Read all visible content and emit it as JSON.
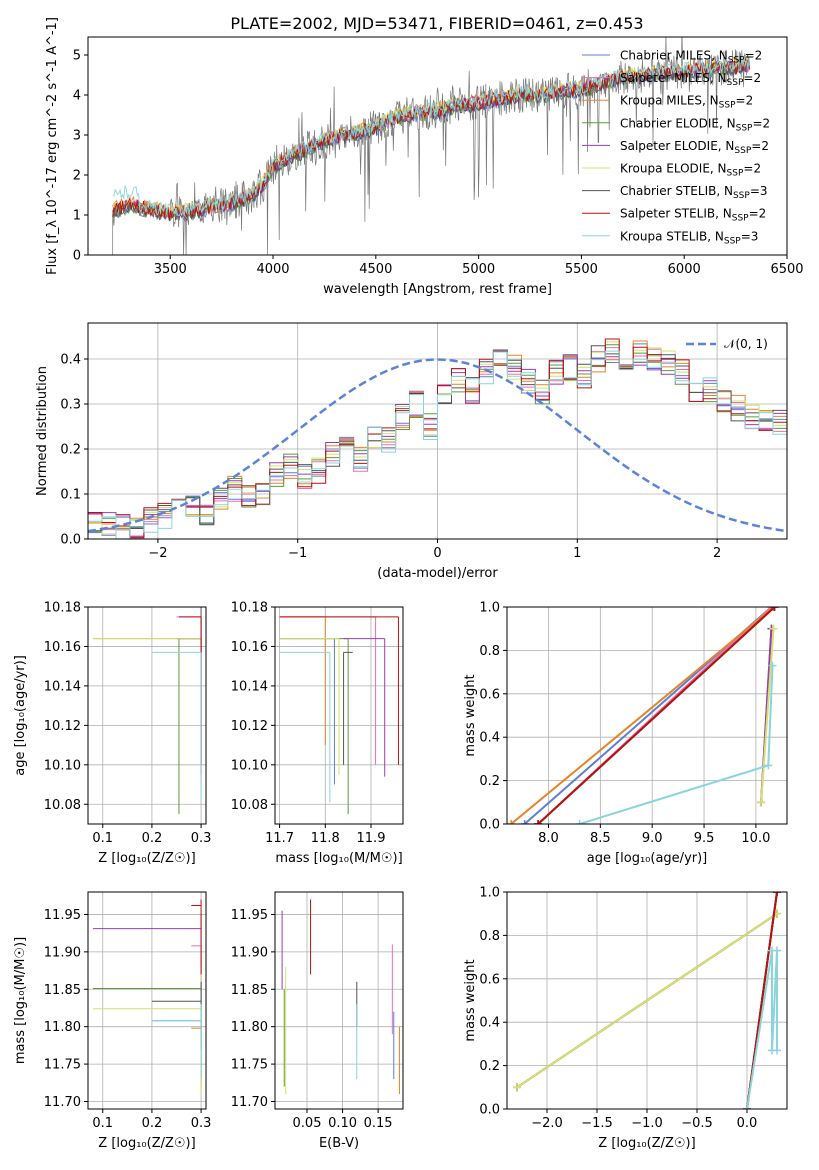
{
  "colors": {
    "Chabrier MILES": "#5b7fd6",
    "Salpeter MILES": "#ea6fb0",
    "Kroupa MILES": "#e6832a",
    "Chabrier ELODIE": "#5a9b3a",
    "Salpeter ELODIE": "#9a3bb5",
    "Kroupa ELODIE": "#d7e06a",
    "Chabrier STELIB": "#555555",
    "Salpeter STELIB": "#b8120e",
    "Kroupa STELIB": "#88d5dd",
    "observed": "#777777",
    "gaussian": "#5b84d8",
    "grid": "#b0b0b0"
  },
  "chart_data": [
    {
      "id": "spectrum",
      "type": "line",
      "title": "PLATE=2002, MJD=53471, FIBERID=0461, z=0.453",
      "xlabel": "wavelength [Angstrom, rest frame]",
      "ylabel": "Flux [f_λ 10^-17 erg cm^-2 s^-1 A^-1]",
      "xlim": [
        3100,
        6500
      ],
      "ylim": [
        0,
        5.45
      ],
      "xticks": [
        "3500",
        "4000",
        "4500",
        "5000",
        "5500",
        "6000",
        "6500"
      ],
      "yticks": [
        "0",
        "1",
        "2",
        "3",
        "4",
        "5"
      ],
      "legend_position": "top-right",
      "legend": [
        {
          "model": "Chabrier MILES",
          "nssp": "2"
        },
        {
          "model": "Salpeter MILES",
          "nssp": "2"
        },
        {
          "model": "Kroupa MILES",
          "nssp": "2"
        },
        {
          "model": "Chabrier ELODIE",
          "nssp": "2"
        },
        {
          "model": "Salpeter ELODIE",
          "nssp": "2"
        },
        {
          "model": "Kroupa ELODIE",
          "nssp": "2"
        },
        {
          "model": "Chabrier STELIB",
          "nssp": "3"
        },
        {
          "model": "Salpeter STELIB",
          "nssp": "2"
        },
        {
          "model": "Kroupa STELIB",
          "nssp": "3"
        }
      ],
      "model_continuum": {
        "wavelength": [
          3220,
          3300,
          3400,
          3500,
          3600,
          3700,
          3800,
          3900,
          3950,
          4000,
          4100,
          4200,
          4300,
          4400,
          4500,
          4600,
          4700,
          4800,
          4900,
          5000,
          5100,
          5200,
          5300,
          5400,
          5500,
          5600,
          5700,
          5800,
          5900,
          6000,
          6100,
          6200,
          6320
        ],
        "flux": [
          1.1,
          1.25,
          1.15,
          1.05,
          1.1,
          1.2,
          1.3,
          1.5,
          1.75,
          2.2,
          2.5,
          2.75,
          2.95,
          3.05,
          3.2,
          3.45,
          3.55,
          3.6,
          3.75,
          3.8,
          3.9,
          4.0,
          4.0,
          4.1,
          4.15,
          4.3,
          4.45,
          4.5,
          4.55,
          4.6,
          4.65,
          4.7,
          4.75
        ]
      }
    },
    {
      "id": "residuals",
      "type": "line",
      "xlabel": "(data-model)/error",
      "ylabel": "Normed distribution",
      "xlim": [
        -2.5,
        2.5
      ],
      "ylim": [
        0,
        0.48
      ],
      "xticks": [
        "−2",
        "−1",
        "0",
        "1",
        "2"
      ],
      "yticks": [
        "0.0",
        "0.1",
        "0.2",
        "0.3",
        "0.4"
      ],
      "legend_position": "top-right",
      "gaussian_label": "𝒩(0, 1)",
      "bin_edges_start": -2.5,
      "bin_width": 0.1,
      "base_histogram": [
        0.03,
        0.03,
        0.025,
        0.03,
        0.04,
        0.05,
        0.07,
        0.07,
        0.06,
        0.09,
        0.11,
        0.1,
        0.1,
        0.14,
        0.16,
        0.14,
        0.15,
        0.19,
        0.2,
        0.18,
        0.23,
        0.22,
        0.27,
        0.3,
        0.25,
        0.32,
        0.35,
        0.33,
        0.37,
        0.4,
        0.38,
        0.35,
        0.33,
        0.37,
        0.38,
        0.36,
        0.4,
        0.42,
        0.38,
        0.41,
        0.4,
        0.39,
        0.37,
        0.33,
        0.33,
        0.3,
        0.29,
        0.27,
        0.27,
        0.26,
        0.24,
        0.23,
        0.2,
        0.22,
        0.21,
        0.18,
        0.17,
        0.14,
        0.13,
        0.12,
        0.11,
        0.09,
        0.1,
        0.08,
        0.07,
        0.075,
        0.07,
        0.06,
        0.05,
        0.06,
        0.05,
        0.05,
        0.04,
        0.045,
        0.04,
        0.04,
        0.045,
        0.03,
        0.04,
        0.03
      ]
    },
    {
      "id": "age-vs-Z",
      "type": "scatter",
      "xlabel": "Z [log₁₀(Z/Z☉)]",
      "ylabel": "age  [log₁₀(age/yr)]",
      "xlim": [
        0.07,
        0.31
      ],
      "ylim": [
        10.07,
        10.18
      ],
      "xticks": [
        "0.1",
        "0.2",
        "0.3"
      ],
      "yticks": [
        "10.08",
        "10.10",
        "10.12",
        "10.14",
        "10.16",
        "10.18"
      ],
      "points": [
        {
          "model": "Chabrier MILES",
          "x": 0.3,
          "y": 10.175,
          "xlo": 0.3,
          "xhi": 0.3,
          "ylo": 10.1,
          "yhi": 10.175
        },
        {
          "model": "Salpeter MILES",
          "x": 0.3,
          "y": 10.175,
          "xlo": 0.25,
          "xhi": 0.3,
          "ylo": 10.09,
          "yhi": 10.175
        },
        {
          "model": "Kroupa MILES",
          "x": 0.3,
          "y": 10.164,
          "xlo": 0.08,
          "xhi": 0.3,
          "ylo": 10.1,
          "yhi": 10.164
        },
        {
          "model": "Chabrier ELODIE",
          "x": 0.255,
          "y": 10.164,
          "xlo": 0.255,
          "xhi": 0.3,
          "ylo": 10.075,
          "yhi": 10.164
        },
        {
          "model": "Salpeter ELODIE",
          "x": 0.3,
          "y": 10.164,
          "xlo": 0.25,
          "xhi": 0.3,
          "ylo": 10.1,
          "yhi": 10.164
        },
        {
          "model": "Kroupa ELODIE",
          "x": 0.3,
          "y": 10.164,
          "xlo": 0.08,
          "xhi": 0.3,
          "ylo": 10.1,
          "yhi": 10.164
        },
        {
          "model": "Chabrier STELIB",
          "x": 0.3,
          "y": 10.18,
          "xlo": 0.08,
          "xhi": 0.3,
          "ylo": 10.1,
          "yhi": 10.18
        },
        {
          "model": "Salpeter STELIB",
          "x": 0.3,
          "y": 10.175,
          "xlo": 0.255,
          "xhi": 0.3,
          "ylo": 10.095,
          "yhi": 10.175
        },
        {
          "model": "Kroupa STELIB",
          "x": 0.3,
          "y": 10.157,
          "xlo": 0.2,
          "xhi": 0.3,
          "ylo": 10.081,
          "yhi": 10.157
        }
      ]
    },
    {
      "id": "age-vs-mass",
      "type": "scatter",
      "xlabel": "mass [log₁₀(M/M☉)]",
      "ylabel": "",
      "xlim": [
        11.69,
        11.97
      ],
      "ylim": [
        10.07,
        10.18
      ],
      "xticks": [
        "11.7",
        "11.8",
        "11.9"
      ],
      "yticks": [
        "10.08",
        "10.10",
        "10.12",
        "10.14",
        "10.16",
        "10.18"
      ],
      "points": [
        {
          "model": "Chabrier MILES",
          "x": 11.82,
          "y": 10.164,
          "xlo": 11.7,
          "xhi": 11.82,
          "ylo": 10.09,
          "yhi": 10.164
        },
        {
          "model": "Salpeter MILES",
          "x": 11.91,
          "y": 10.175,
          "xlo": 11.7,
          "xhi": 11.91,
          "ylo": 10.1,
          "yhi": 10.175
        },
        {
          "model": "Kroupa MILES",
          "x": 11.8,
          "y": 10.175,
          "xlo": 11.7,
          "xhi": 11.8,
          "ylo": 10.11,
          "yhi": 10.175
        },
        {
          "model": "Chabrier ELODIE",
          "x": 11.85,
          "y": 10.164,
          "xlo": 11.7,
          "xhi": 11.85,
          "ylo": 10.075,
          "yhi": 10.164
        },
        {
          "model": "Salpeter ELODIE",
          "x": 11.93,
          "y": 10.164,
          "xlo": 11.84,
          "xhi": 11.93,
          "ylo": 10.094,
          "yhi": 10.164
        },
        {
          "model": "Kroupa ELODIE",
          "x": 11.83,
          "y": 10.164,
          "xlo": 11.7,
          "xhi": 11.83,
          "ylo": 10.095,
          "yhi": 10.164
        },
        {
          "model": "Chabrier STELIB",
          "x": 11.84,
          "y": 10.157,
          "xlo": 11.84,
          "xhi": 11.86,
          "ylo": 10.1,
          "yhi": 10.157
        },
        {
          "model": "Salpeter STELIB",
          "x": 11.96,
          "y": 10.175,
          "xlo": 11.7,
          "xhi": 11.96,
          "ylo": 10.1,
          "yhi": 10.175
        },
        {
          "model": "Kroupa STELIB",
          "x": 11.81,
          "y": 10.157,
          "xlo": 11.7,
          "xhi": 11.81,
          "ylo": 10.081,
          "yhi": 10.157
        }
      ]
    },
    {
      "id": "weight-vs-age",
      "type": "line",
      "xlabel": "age  [log₁₀(age/yr)]",
      "ylabel": "mass weight",
      "xlim": [
        7.6,
        10.3
      ],
      "ylim": [
        0,
        1
      ],
      "xticks": [
        "8.0",
        "8.5",
        "9.0",
        "9.5",
        "10.0"
      ],
      "yticks": [
        "0.0",
        "0.2",
        "0.4",
        "0.6",
        "0.8",
        "1.0"
      ],
      "series": [
        {
          "model": "Chabrier MILES",
          "x": [
            7.77,
            10.15
          ],
          "y": [
            0.0,
            1.0
          ]
        },
        {
          "model": "Salpeter MILES",
          "x": [
            7.9,
            10.15
          ],
          "y": [
            0.0,
            1.0
          ]
        },
        {
          "model": "Kroupa MILES",
          "x": [
            7.64,
            10.17
          ],
          "y": [
            0.0,
            1.0
          ]
        },
        {
          "model": "Chabrier ELODIE",
          "x": [
            10.05,
            10.15
          ],
          "y": [
            0.1,
            0.9
          ]
        },
        {
          "model": "Salpeter ELODIE",
          "x": [
            10.05,
            10.15
          ],
          "y": [
            0.1,
            0.9
          ]
        },
        {
          "model": "Kroupa ELODIE",
          "x": [
            10.05,
            10.17
          ],
          "y": [
            0.1,
            0.9
          ]
        },
        {
          "model": "Chabrier STELIB",
          "x": [
            7.9,
            10.18
          ],
          "y": [
            0.0,
            1.0
          ]
        },
        {
          "model": "Salpeter STELIB",
          "x": [
            7.9,
            10.18
          ],
          "y": [
            0.0,
            1.0
          ]
        },
        {
          "model": "Kroupa STELIB",
          "x": [
            8.3,
            10.12,
            10.16
          ],
          "y": [
            0.0,
            0.27,
            0.73
          ]
        }
      ]
    },
    {
      "id": "mass-vs-Z",
      "type": "scatter",
      "xlabel": "Z [log₁₀(Z/Z☉)]",
      "ylabel": "mass [log₁₀(M/M☉)]",
      "xlim": [
        0.07,
        0.31
      ],
      "ylim": [
        11.69,
        11.98
      ],
      "xticks": [
        "0.1",
        "0.2",
        "0.3"
      ],
      "yticks": [
        "11.70",
        "11.75",
        "11.80",
        "11.85",
        "11.90",
        "11.95"
      ],
      "points": [
        {
          "model": "Chabrier MILES",
          "x": 0.3,
          "y": 11.808,
          "xlo": 0.2,
          "xhi": 0.3,
          "ylo": 11.73,
          "yhi": 11.87
        },
        {
          "model": "Salpeter MILES",
          "x": 0.3,
          "y": 11.908,
          "xlo": 0.28,
          "xhi": 0.3,
          "ylo": 11.83,
          "yhi": 11.908
        },
        {
          "model": "Kroupa MILES",
          "x": 0.3,
          "y": 11.798,
          "xlo": 0.28,
          "xhi": 0.3,
          "ylo": 11.71,
          "yhi": 11.798
        },
        {
          "model": "Chabrier ELODIE",
          "x": 0.3,
          "y": 11.851,
          "xlo": 0.08,
          "xhi": 0.3,
          "ylo": 11.72,
          "yhi": 11.851
        },
        {
          "model": "Salpeter ELODIE",
          "x": 0.3,
          "y": 11.931,
          "xlo": 0.08,
          "xhi": 0.3,
          "ylo": 11.85,
          "yhi": 11.95
        },
        {
          "model": "Kroupa ELODIE",
          "x": 0.3,
          "y": 11.824,
          "xlo": 0.08,
          "xhi": 0.3,
          "ylo": 11.71,
          "yhi": 11.88
        },
        {
          "model": "Chabrier STELIB",
          "x": 0.3,
          "y": 11.834,
          "xlo": 0.2,
          "xhi": 0.3,
          "ylo": 11.77,
          "yhi": 11.86
        },
        {
          "model": "Salpeter STELIB",
          "x": 0.3,
          "y": 11.962,
          "xlo": 0.28,
          "xhi": 0.3,
          "ylo": 11.87,
          "yhi": 11.97
        },
        {
          "model": "Kroupa STELIB",
          "x": 0.3,
          "y": 11.808,
          "xlo": 0.2,
          "xhi": 0.3,
          "ylo": 11.73,
          "yhi": 11.83
        }
      ]
    },
    {
      "id": "mass-vs-ebv",
      "type": "scatter",
      "xlabel": "E(B-V)",
      "ylabel": "",
      "xlim": [
        0.005,
        0.185
      ],
      "ylim": [
        11.69,
        11.98
      ],
      "xticks": [
        "0.05",
        "0.10",
        "0.15"
      ],
      "yticks": [
        "11.70",
        "11.75",
        "11.80",
        "11.85",
        "11.90",
        "11.95"
      ],
      "points": [
        {
          "model": "Chabrier MILES",
          "x": 0.172,
          "ylo": 11.73,
          "yhi": 11.82
        },
        {
          "model": "Salpeter MILES",
          "x": 0.17,
          "ylo": 11.79,
          "yhi": 11.91
        },
        {
          "model": "Kroupa MILES",
          "x": 0.18,
          "ylo": 11.71,
          "yhi": 11.8
        },
        {
          "model": "Chabrier ELODIE",
          "x": 0.018,
          "ylo": 11.72,
          "yhi": 11.85
        },
        {
          "model": "Salpeter ELODIE",
          "x": 0.015,
          "ylo": 11.85,
          "yhi": 11.955
        },
        {
          "model": "Kroupa ELODIE",
          "x": 0.02,
          "ylo": 11.71,
          "yhi": 11.88
        },
        {
          "model": "Chabrier STELIB",
          "x": 0.12,
          "ylo": 11.8,
          "yhi": 11.86
        },
        {
          "model": "Salpeter STELIB",
          "x": 0.055,
          "ylo": 11.87,
          "yhi": 11.97
        },
        {
          "model": "Kroupa STELIB",
          "x": 0.12,
          "ylo": 11.73,
          "yhi": 11.83
        }
      ]
    },
    {
      "id": "weight-vs-Z",
      "type": "line",
      "xlabel": "Z [log₁₀(Z/Z☉)]",
      "ylabel": "mass weight",
      "xlim": [
        -2.4,
        0.4
      ],
      "ylim": [
        0,
        1
      ],
      "xticks": [
        "−2.0",
        "−1.5",
        "−1.0",
        "−0.5",
        "0.0"
      ],
      "yticks": [
        "0.0",
        "0.2",
        "0.4",
        "0.6",
        "0.8",
        "1.0"
      ],
      "series": [
        {
          "model": "Chabrier MILES",
          "x": [
            0.0,
            0.3
          ],
          "y": [
            0.0,
            1.0
          ]
        },
        {
          "model": "Salpeter MILES",
          "x": [
            0.0,
            0.3
          ],
          "y": [
            0.0,
            1.0
          ]
        },
        {
          "model": "Kroupa MILES",
          "x": [
            0.0,
            0.3
          ],
          "y": [
            0.0,
            1.0
          ]
        },
        {
          "model": "Chabrier ELODIE",
          "x": [
            -2.3,
            0.3
          ],
          "y": [
            0.1,
            0.9
          ]
        },
        {
          "model": "Salpeter ELODIE",
          "x": [
            -2.3,
            0.3
          ],
          "y": [
            0.1,
            0.9
          ]
        },
        {
          "model": "Kroupa ELODIE",
          "x": [
            -2.3,
            0.3
          ],
          "y": [
            0.1,
            0.9
          ]
        },
        {
          "model": "Chabrier STELIB",
          "x": [
            0.0,
            0.3
          ],
          "y": [
            0.0,
            1.0
          ]
        },
        {
          "model": "Salpeter STELIB",
          "x": [
            0.0,
            0.3
          ],
          "y": [
            0.0,
            1.0
          ]
        },
        {
          "model": "Kroupa STELIB",
          "x": [
            0.0,
            0.25,
            0.25,
            0.3,
            0.3
          ],
          "y": [
            0.0,
            0.73,
            0.27,
            0.73,
            0.27
          ]
        }
      ]
    }
  ]
}
